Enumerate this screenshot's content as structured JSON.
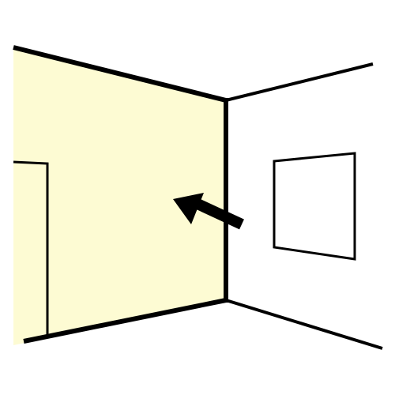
{
  "colors": {
    "background": "#ffffff",
    "highlighted_wall": "#fdfbd3",
    "stroke": "#000000"
  },
  "scene": {
    "highlighted_element": "left-wall",
    "indicator": "arrow-pointing-at-left-wall"
  }
}
